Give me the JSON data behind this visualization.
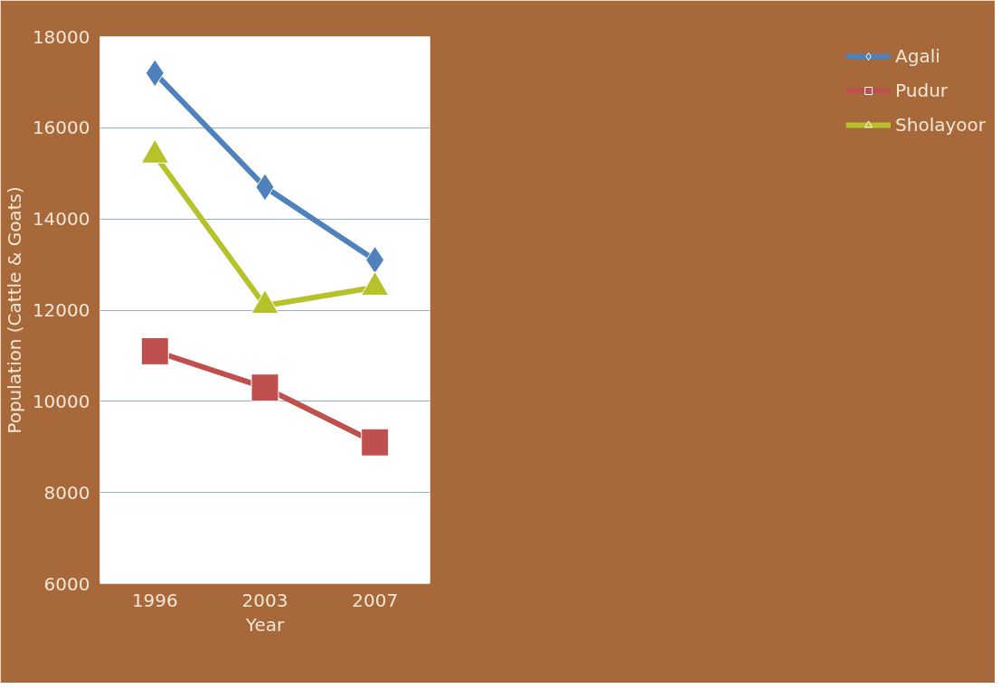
{
  "chart_data": {
    "type": "line",
    "xlabel": "Year",
    "ylabel": "Population (Cattle & Goats)",
    "categories": [
      "1996",
      "2003",
      "2007"
    ],
    "ylim": [
      6000,
      18000
    ],
    "yticks": [
      6000,
      8000,
      10000,
      12000,
      14000,
      16000,
      18000
    ],
    "grid": "y",
    "legend": "right",
    "line_style": "solid",
    "series": [
      {
        "name": "Agali",
        "color": "#4f81bd",
        "marker": "diamond",
        "values": [
          17200,
          14700,
          13100
        ]
      },
      {
        "name": "Pudur",
        "color": "#c0504d",
        "marker": "square",
        "values": [
          11100,
          10300,
          9100
        ]
      },
      {
        "name": "Sholayoor",
        "color": "#b5c22a",
        "marker": "triangle",
        "values": [
          15400,
          12100,
          12500
        ]
      }
    ]
  }
}
